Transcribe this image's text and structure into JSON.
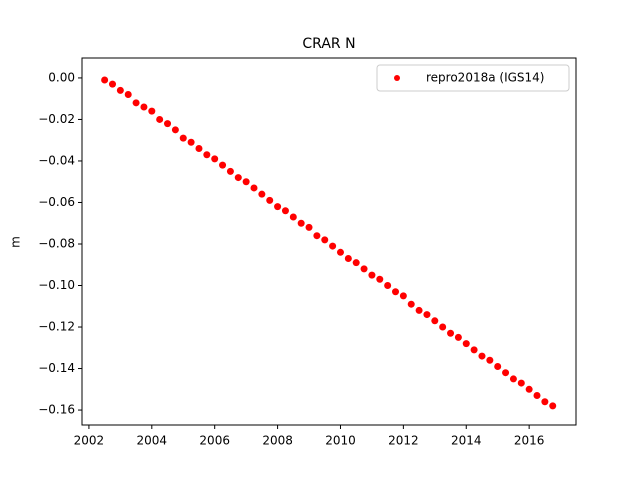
{
  "chart_data": {
    "type": "scatter",
    "title": "CRAR N",
    "y_label": "m",
    "series": [
      {
        "name": "repro2018a (IGS14)",
        "color": "#ff0000",
        "x": [
          2002.5,
          2002.75,
          2003,
          2003.25,
          2003.5,
          2003.75,
          2004,
          2004.25,
          2004.5,
          2004.75,
          2005,
          2005.25,
          2005.5,
          2005.75,
          2006,
          2006.25,
          2006.5,
          2006.75,
          2007,
          2007.25,
          2007.5,
          2007.75,
          2008,
          2008.25,
          2008.5,
          2008.75,
          2009,
          2009.25,
          2009.5,
          2009.75,
          2010,
          2010.25,
          2010.5,
          2010.75,
          2011,
          2011.25,
          2011.5,
          2011.75,
          2012,
          2012.25,
          2012.5,
          2012.75,
          2013,
          2013.25,
          2013.5,
          2013.75,
          2014,
          2014.25,
          2014.5,
          2014.75,
          2015,
          2015.25,
          2015.5,
          2015.75,
          2016,
          2016.25,
          2016.5,
          2016.75
        ],
        "values": [
          -0.001,
          -0.003,
          -0.006,
          -0.008,
          -0.012,
          -0.014,
          -0.016,
          -0.02,
          -0.022,
          -0.025,
          -0.029,
          -0.031,
          -0.034,
          -0.037,
          -0.039,
          -0.042,
          -0.045,
          -0.048,
          -0.05,
          -0.053,
          -0.056,
          -0.059,
          -0.062,
          -0.064,
          -0.067,
          -0.07,
          -0.072,
          -0.076,
          -0.078,
          -0.081,
          -0.084,
          -0.087,
          -0.089,
          -0.092,
          -0.095,
          -0.097,
          -0.1,
          -0.103,
          -0.105,
          -0.109,
          -0.112,
          -0.114,
          -0.117,
          -0.12,
          -0.123,
          -0.125,
          -0.128,
          -0.131,
          -0.134,
          -0.136,
          -0.139,
          -0.142,
          -0.145,
          -0.147,
          -0.15,
          -0.153,
          -0.156,
          -0.158
        ]
      }
    ],
    "xlim": [
      2001.78,
      2017.49
    ],
    "xticks": [
      2002,
      2004,
      2006,
      2008,
      2010,
      2012,
      2014,
      2016
    ],
    "ylim": [
      -0.1672,
      0.0096
    ],
    "yticks": [
      {
        "value": 0,
        "label": "0.00"
      },
      {
        "value": -0.02,
        "label": "−0.02"
      },
      {
        "value": -0.04,
        "label": "−0.04"
      },
      {
        "value": -0.06,
        "label": "−0.06"
      },
      {
        "value": -0.08,
        "label": "−0.08"
      },
      {
        "value": -0.1,
        "label": "−0.10"
      },
      {
        "value": -0.12,
        "label": "−0.12"
      },
      {
        "value": -0.14,
        "label": "−0.14"
      },
      {
        "value": -0.16,
        "label": "−0.16"
      }
    ],
    "legend": "upper right"
  }
}
